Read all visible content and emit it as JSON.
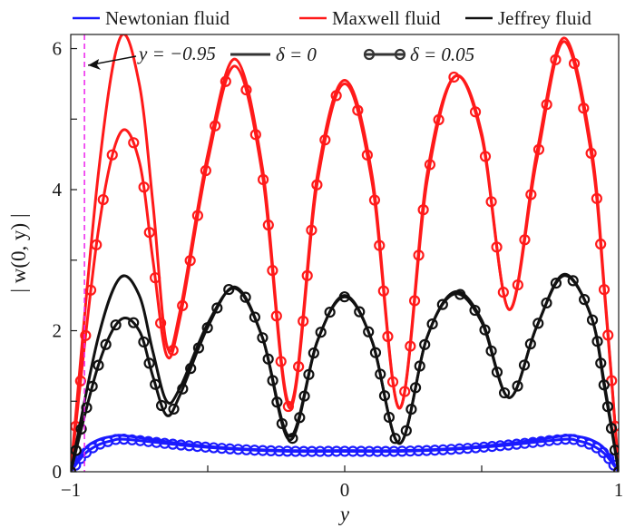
{
  "chart_data": {
    "type": "line",
    "xlabel": "y",
    "ylabel": "| w(0, y) |",
    "xlim": [
      -1,
      1
    ],
    "ylim": [
      0,
      6.2
    ],
    "x_ticks": [
      -1,
      0,
      1
    ],
    "x_tick_labels": [
      "−1",
      "0",
      "1"
    ],
    "y_ticks": [
      0,
      2,
      4,
      6
    ],
    "y_tick_labels": [
      "0",
      "2",
      "4",
      "6"
    ],
    "grid": false,
    "legend": {
      "placement": "top",
      "fluid_entries": [
        {
          "label": "Newtonian fluid",
          "color": "#1a1aff"
        },
        {
          "label": "Maxwell fluid",
          "color": "#ff1a1a"
        },
        {
          "label": "Jeffrey fluid",
          "color": "#111111"
        }
      ],
      "style_entries": [
        {
          "label": "δ = 0",
          "marker": "none"
        },
        {
          "label": "δ = 0.05",
          "marker": "circle"
        }
      ]
    },
    "annotation": {
      "text": "y = −0.95",
      "x": -0.95,
      "color": "#ee22ee"
    },
    "series": [
      {
        "fluid": "Newtonian fluid",
        "delta": "δ = 0",
        "color": "#1a1aff",
        "marker": "none",
        "x": [
          -1,
          -0.95,
          -0.9,
          -0.85,
          -0.8,
          -0.6,
          -0.4,
          -0.2,
          0,
          0.2,
          0.4,
          0.6,
          0.8,
          0.85,
          0.9,
          0.95,
          1
        ],
        "y": [
          0,
          0.32,
          0.45,
          0.5,
          0.51,
          0.4,
          0.33,
          0.3,
          0.3,
          0.3,
          0.33,
          0.4,
          0.51,
          0.5,
          0.45,
          0.32,
          0
        ]
      },
      {
        "fluid": "Newtonian fluid",
        "delta": "δ = 0.05",
        "color": "#1a1aff",
        "marker": "circle",
        "x": [
          -1,
          -0.95,
          -0.9,
          -0.85,
          -0.8,
          -0.6,
          -0.4,
          -0.2,
          0,
          0.2,
          0.4,
          0.6,
          0.8,
          0.85,
          0.9,
          0.95,
          1
        ],
        "y": [
          0,
          0.25,
          0.38,
          0.44,
          0.46,
          0.38,
          0.32,
          0.29,
          0.29,
          0.29,
          0.32,
          0.38,
          0.46,
          0.44,
          0.38,
          0.25,
          0
        ]
      },
      {
        "fluid": "Maxwell fluid",
        "delta": "δ = 0",
        "color": "#ff1a1a",
        "marker": "none",
        "x": [
          -1,
          -0.9,
          -0.82,
          -0.75,
          -0.7,
          -0.65,
          -0.6,
          -0.5,
          -0.4,
          -0.3,
          -0.2,
          -0.1,
          0,
          0.1,
          0.2,
          0.3,
          0.4,
          0.5,
          0.6,
          0.7,
          0.8,
          0.9,
          0.95,
          1
        ],
        "y": [
          0,
          4.2,
          6.15,
          5.5,
          3.8,
          1.8,
          2.3,
          4.5,
          5.85,
          4.3,
          0.95,
          4.2,
          5.55,
          4.2,
          0.9,
          4.2,
          5.6,
          4.8,
          2.3,
          4.5,
          6.15,
          4.6,
          2.5,
          0
        ]
      },
      {
        "fluid": "Maxwell fluid",
        "delta": "δ = 0.05",
        "color": "#ff1a1a",
        "marker": "circle",
        "x": [
          -1,
          -0.9,
          -0.82,
          -0.75,
          -0.7,
          -0.65,
          -0.6,
          -0.5,
          -0.4,
          -0.3,
          -0.2,
          -0.1,
          0,
          0.1,
          0.2,
          0.3,
          0.4,
          0.5,
          0.6,
          0.7,
          0.8,
          0.9,
          0.95,
          1
        ],
        "y": [
          0,
          3.4,
          4.8,
          4.4,
          3.0,
          1.65,
          2.2,
          4.4,
          5.75,
          4.2,
          0.9,
          4.1,
          5.5,
          4.1,
          0.9,
          4.1,
          5.6,
          4.75,
          2.3,
          4.4,
          6.1,
          4.5,
          2.45,
          0
        ]
      },
      {
        "fluid": "Jeffrey fluid",
        "delta": "δ = 0",
        "color": "#111111",
        "marker": "none",
        "x": [
          -1,
          -0.9,
          -0.82,
          -0.75,
          -0.7,
          -0.65,
          -0.6,
          -0.5,
          -0.4,
          -0.3,
          -0.2,
          -0.1,
          0,
          0.1,
          0.2,
          0.3,
          0.4,
          0.5,
          0.6,
          0.7,
          0.8,
          0.9,
          0.95,
          1
        ],
        "y": [
          0,
          1.9,
          2.75,
          2.5,
          1.7,
          1.0,
          1.2,
          2.1,
          2.6,
          1.9,
          0.5,
          1.85,
          2.5,
          1.85,
          0.4,
          1.9,
          2.55,
          2.15,
          1.05,
          2.05,
          2.8,
          2.2,
          1.2,
          0
        ]
      },
      {
        "fluid": "Jeffrey fluid",
        "delta": "δ = 0.05",
        "color": "#111111",
        "marker": "circle",
        "x": [
          -1,
          -0.9,
          -0.82,
          -0.75,
          -0.7,
          -0.65,
          -0.6,
          -0.5,
          -0.4,
          -0.3,
          -0.2,
          -0.1,
          0,
          0.1,
          0.2,
          0.3,
          0.4,
          0.5,
          0.6,
          0.7,
          0.8,
          0.9,
          0.95,
          1
        ],
        "y": [
          0,
          1.5,
          2.15,
          2.0,
          1.35,
          0.8,
          1.1,
          2.05,
          2.62,
          1.9,
          0.45,
          1.85,
          2.48,
          1.85,
          0.4,
          1.9,
          2.52,
          2.12,
          1.05,
          2.05,
          2.78,
          2.2,
          1.15,
          0
        ]
      }
    ]
  }
}
